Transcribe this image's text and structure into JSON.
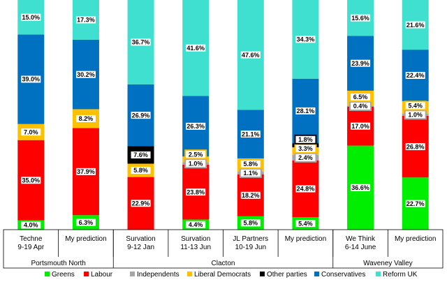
{
  "chart_data": {
    "type": "bar",
    "stacked": true,
    "normalized_to_percent": true,
    "grid": false,
    "legend_position": "bottom",
    "series_order": [
      "Greens",
      "Labour",
      "Independents",
      "Liberal Democrats",
      "Other parties",
      "Conservatives",
      "Reform UK"
    ],
    "colors": {
      "Greens": "#00ee00",
      "Labour": "#ff0000",
      "Independents": "#a6a6a6",
      "Liberal Democrats": "#ffc000",
      "Other parties": "#000000",
      "Conservatives": "#0070c0",
      "Reform UK": "#40e0d0"
    },
    "bars": [
      {
        "category": [
          "Techne",
          "9-19 Apr"
        ],
        "group": "Portsmouth North",
        "segments": {
          "Greens": 4.0,
          "Labour": 35.0,
          "Liberal Democrats": 7.0,
          "Conservatives": 39.0,
          "Reform UK": 15.0
        },
        "labels": [
          [
            "Greens",
            "4.0%"
          ],
          [
            "Labour",
            "35.0%"
          ],
          [
            "Liberal Democrats",
            "7.0%"
          ],
          [
            "Conservatives",
            "39.0%"
          ],
          [
            "Reform UK",
            "15.0%"
          ]
        ]
      },
      {
        "category": [
          "My prediction"
        ],
        "group": "Portsmouth North",
        "segments": {
          "Greens": 6.3,
          "Labour": 37.9,
          "Liberal Democrats": 8.2,
          "Conservatives": 30.2,
          "Reform UK": 17.3
        },
        "labels": [
          [
            "Greens",
            "6.3%"
          ],
          [
            "Labour",
            "37.9%"
          ],
          [
            "Liberal Democrats",
            "8.2%"
          ],
          [
            "Conservatives",
            "30.2%"
          ],
          [
            "Reform UK",
            "17.3%"
          ]
        ]
      },
      {
        "category": [
          "Survation",
          "9-12 Jan"
        ],
        "group": "Clacton",
        "segments": {
          "Labour": 22.9,
          "Liberal Democrats": 5.8,
          "Other parties": 7.6,
          "Conservatives": 26.9,
          "Reform UK": 36.7
        },
        "labels": [
          [
            "Labour",
            "22.9%"
          ],
          [
            "Liberal Democrats",
            "5.8%"
          ],
          [
            "Other parties",
            "7.6%"
          ],
          [
            "Conservatives",
            "26.9%"
          ],
          [
            "Reform UK",
            "36.7%"
          ]
        ]
      },
      {
        "category": [
          "Survation",
          "11-13 Jun"
        ],
        "group": "Clacton",
        "segments": {
          "Greens": 4.4,
          "Labour": 23.8,
          "Independents": 1.0,
          "Liberal Democrats": 2.5,
          "Conservatives": 26.3,
          "Reform UK": 41.6
        },
        "labels": [
          [
            "Greens",
            "4.4%"
          ],
          [
            "Labour",
            "23.8%"
          ],
          [
            "Independents",
            "1.0%"
          ],
          [
            "Liberal Democrats",
            "2.5%"
          ],
          [
            "Conservatives",
            "26.3%"
          ],
          [
            "Reform UK",
            "41.6%"
          ]
        ]
      },
      {
        "category": [
          "JL Partners",
          "10-19 Jun"
        ],
        "group": "Clacton",
        "segments": {
          "Greens": 5.8,
          "Labour": 18.2,
          "Independents": 1.1,
          "Liberal Democrats": 5.8,
          "Conservatives": 21.1,
          "Reform UK": 47.6
        },
        "labels": [
          [
            "Greens",
            "5.8%"
          ],
          [
            "Labour",
            "18.2%"
          ],
          [
            "Independents",
            "1.1%"
          ],
          [
            "Liberal Democrats",
            "5.8%"
          ],
          [
            "Conservatives",
            "21.1%"
          ],
          [
            "Reform UK",
            "47.6%"
          ]
        ]
      },
      {
        "category": [
          "My prediction"
        ],
        "group": "Clacton",
        "segments": {
          "Greens": 5.4,
          "Labour": 24.8,
          "Independents": 2.4,
          "Liberal Democrats": 3.3,
          "Other parties": 1.8,
          "Conservatives": 28.1,
          "Reform UK": 34.3
        },
        "labels": [
          [
            "Greens",
            "5.4%"
          ],
          [
            "Labour",
            "24.8%"
          ],
          [
            "Independents",
            "2.4%"
          ],
          [
            "Liberal Democrats",
            "3.3%"
          ],
          [
            "Other parties",
            "1.8%"
          ],
          [
            "Conservatives",
            "28.1%"
          ],
          [
            "Reform UK",
            "34.3%"
          ]
        ]
      },
      {
        "category": [
          "We Think",
          "6-14 June"
        ],
        "group": "Waveney Valley",
        "segments": {
          "Greens": 36.6,
          "Labour": 17.0,
          "Independents": 0.4,
          "Liberal Democrats": 6.5,
          "Conservatives": 23.9,
          "Reform UK": 15.6
        },
        "labels": [
          [
            "Greens",
            "36.6%"
          ],
          [
            "Labour",
            "17.0%"
          ],
          [
            "Independents",
            "0.4%"
          ],
          [
            "Liberal Democrats",
            "6.5%"
          ],
          [
            "Conservatives",
            "23.9%"
          ],
          [
            "Reform UK",
            "15.6%"
          ]
        ]
      },
      {
        "category": [
          "My prediction"
        ],
        "group": "Waveney Valley",
        "segments": {
          "Greens": 22.7,
          "Labour": 26.8,
          "Independents": 1.0,
          "Liberal Democrats": 5.4,
          "Conservatives": 22.4,
          "Reform UK": 21.6
        },
        "labels": [
          [
            "Greens",
            "22.7%"
          ],
          [
            "Labour",
            "26.8%"
          ],
          [
            "Independents",
            "1.0%"
          ],
          [
            "Liberal Democrats",
            "5.4%"
          ],
          [
            "Conservatives",
            "22.4%"
          ],
          [
            "Reform UK",
            "21.6%"
          ]
        ]
      }
    ],
    "groups": [
      "Portsmouth North",
      "Clacton",
      "Waveney Valley"
    ],
    "legend": [
      "Greens",
      "Labour",
      "Independents",
      "Liberal Democrats",
      "Other parties",
      "Conservatives",
      "Reform UK"
    ]
  }
}
